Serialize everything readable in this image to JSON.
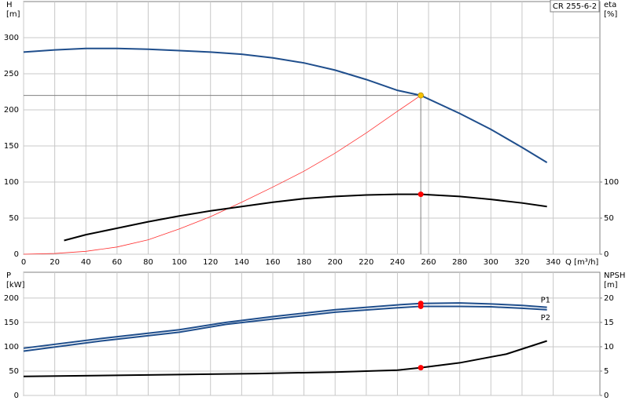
{
  "chart_data": [
    {
      "type": "line",
      "title": "CR 255-6-2",
      "y_label": "H",
      "y_unit": "[m]",
      "y2_label": "eta",
      "y2_unit": "[%]",
      "x_label": "Q [m³/h]",
      "xlim": [
        0,
        370
      ],
      "xticks": [
        0,
        20,
        40,
        60,
        80,
        100,
        120,
        140,
        160,
        180,
        200,
        220,
        240,
        260,
        280,
        300,
        320,
        340
      ],
      "x_tick_labels": true,
      "ylim": [
        0,
        350
      ],
      "yticks": [
        0,
        50,
        100,
        150,
        200,
        250,
        300
      ],
      "y2lim": [
        0,
        350
      ],
      "y2ticks": [
        0,
        50,
        100
      ],
      "grid": true,
      "series": [
        {
          "color": "#1f4e8c",
          "x": [
            0,
            20,
            40,
            60,
            80,
            100,
            120,
            140,
            160,
            180,
            200,
            220,
            240,
            255,
            280,
            300,
            320,
            336
          ],
          "values": [
            280,
            283,
            285,
            285,
            284,
            282,
            280,
            277,
            272,
            265,
            255,
            242,
            227,
            220,
            195,
            173,
            148,
            127
          ]
        },
        {
          "color": "#ff3030",
          "x": [
            0,
            20,
            40,
            60,
            80,
            100,
            120,
            140,
            160,
            180,
            200,
            220,
            240,
            255
          ],
          "values": [
            0,
            1,
            4,
            10,
            20,
            35,
            52,
            72,
            93,
            115,
            140,
            168,
            198,
            220
          ]
        },
        {
          "color": "#000000",
          "axis": "y2",
          "x": [
            26,
            40,
            60,
            80,
            100,
            120,
            140,
            160,
            180,
            200,
            220,
            240,
            255,
            280,
            300,
            320,
            336
          ],
          "values": [
            19,
            27,
            36,
            45,
            53,
            60,
            66,
            72,
            77,
            80,
            82,
            83,
            83,
            80,
            76,
            71,
            66
          ]
        }
      ],
      "markers": [
        {
          "x": 255,
          "y": 220,
          "color": "#f5c000",
          "crosshair": true
        },
        {
          "x": 255,
          "y": 83,
          "color": "#ff0000",
          "axis": "y2"
        }
      ]
    },
    {
      "type": "line",
      "y_label": "P",
      "y_unit": "[kW]",
      "y2_label": "NPSH",
      "y2_unit": "[m]",
      "xlim": [
        0,
        370
      ],
      "xticks": [
        0,
        20,
        40,
        60,
        80,
        100,
        120,
        140,
        160,
        180,
        200,
        220,
        240,
        260,
        280,
        300,
        320,
        340
      ],
      "x_tick_labels": false,
      "ylim": [
        0,
        253
      ],
      "yticks": [
        0,
        50,
        100,
        150,
        200
      ],
      "y2lim": [
        0,
        25.3
      ],
      "y2ticks": [
        0,
        5,
        10,
        15,
        20
      ],
      "grid": true,
      "series": [
        {
          "name": "P1",
          "color": "#1f4e8c",
          "x": [
            0,
            50,
            100,
            130,
            160,
            200,
            240,
            255,
            280,
            300,
            320,
            336
          ],
          "values": [
            97,
            117,
            135,
            150,
            162,
            176,
            186,
            189,
            190,
            188,
            185,
            181
          ]
        },
        {
          "name": "P2",
          "color": "#1f4e8c",
          "x": [
            0,
            50,
            100,
            130,
            160,
            200,
            240,
            255,
            280,
            300,
            320,
            336
          ],
          "values": [
            91,
            112,
            130,
            146,
            157,
            171,
            180,
            183,
            183,
            182,
            179,
            176
          ]
        },
        {
          "color": "#000000",
          "axis": "y2",
          "x": [
            0,
            100,
            150,
            200,
            240,
            255,
            280,
            310,
            336
          ],
          "values": [
            3.9,
            4.3,
            4.5,
            4.8,
            5.2,
            5.7,
            6.7,
            8.5,
            11.2
          ]
        }
      ],
      "markers": [
        {
          "x": 255,
          "y": 189,
          "color": "#ff0000"
        },
        {
          "x": 255,
          "y": 183,
          "color": "#ff0000"
        },
        {
          "x": 255,
          "y": 5.7,
          "color": "#ff0000",
          "axis": "y2"
        }
      ]
    }
  ]
}
